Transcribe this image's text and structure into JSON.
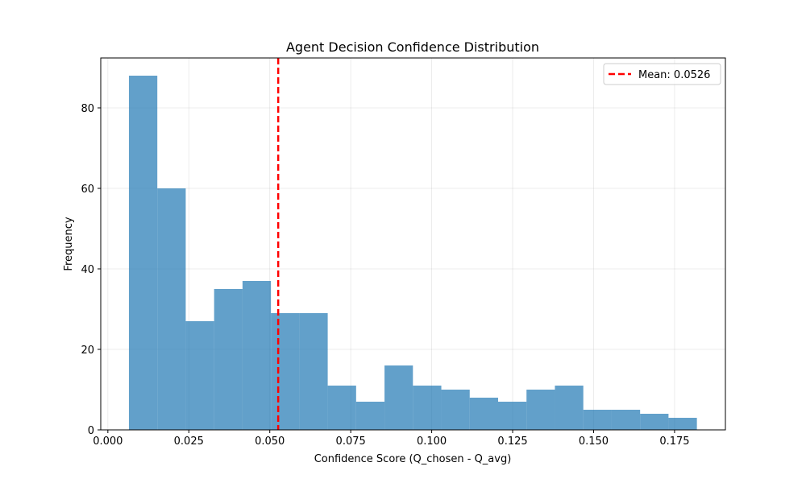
{
  "chart_data": {
    "type": "bar",
    "title": "Agent Decision Confidence Distribution",
    "xlabel": "Confidence Score (Q_chosen - Q_avg)",
    "ylabel": "Frequency",
    "xlim": [
      -0.0022,
      0.1907
    ],
    "ylim": [
      0,
      92.4
    ],
    "x_ticks": [
      0.0,
      0.025,
      0.05,
      0.075,
      0.1,
      0.125,
      0.15,
      0.175
    ],
    "x_tick_labels": [
      "0.000",
      "0.025",
      "0.050",
      "0.075",
      "0.100",
      "0.125",
      "0.150",
      "0.175"
    ],
    "y_ticks": [
      0,
      20,
      40,
      60,
      80
    ],
    "y_tick_labels": [
      "0",
      "20",
      "40",
      "60",
      "80"
    ],
    "grid": true,
    "bin_start": 0.0065,
    "bin_width": 0.00877,
    "values": [
      88,
      60,
      27,
      35,
      37,
      29,
      29,
      11,
      7,
      16,
      11,
      10,
      8,
      7,
      10,
      11,
      5,
      5,
      4,
      3
    ],
    "bar_color": "#1f77b4",
    "bar_opacity": 0.7,
    "mean_line": {
      "value": 0.0526,
      "color": "#ff0000",
      "label": "Mean: 0.0526"
    },
    "legend_position": "top-right"
  }
}
